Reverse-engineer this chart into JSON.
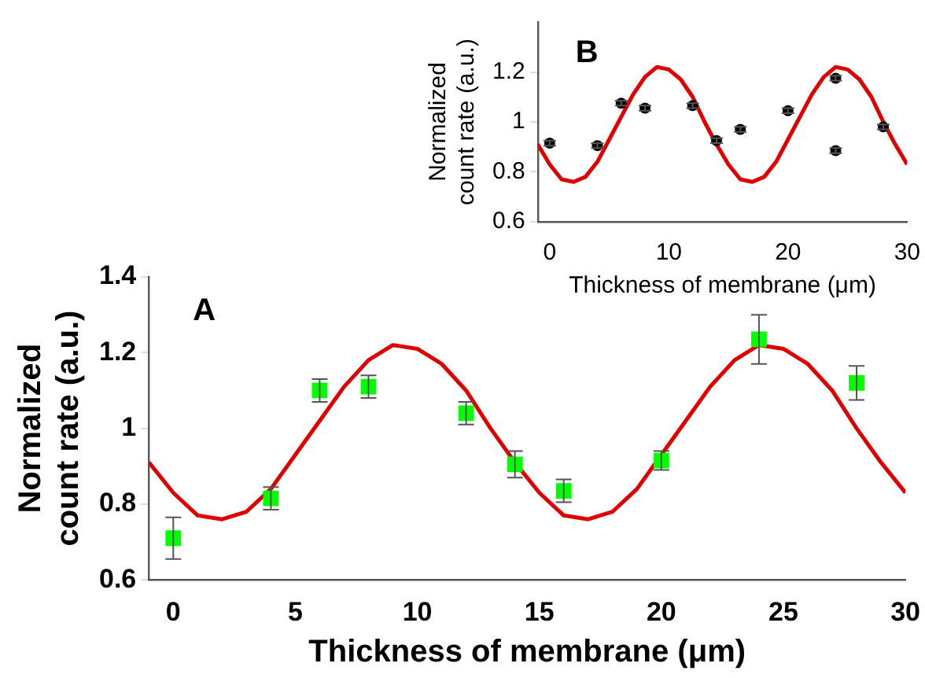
{
  "chart_data": [
    {
      "type": "scatter",
      "annotations": [
        "A"
      ],
      "xlabel": "Thickness of membrane (μm)",
      "ylabel": "Normalized count rate (a.u.)",
      "xlim": [
        -1,
        30
      ],
      "xticks": [
        0,
        5,
        10,
        15,
        20,
        25,
        30
      ],
      "ylim": [
        0.6,
        1.4
      ],
      "yticks": [
        0.6,
        0.8,
        1,
        1.2,
        1.4
      ],
      "grid": false,
      "legend": false,
      "series": [
        {
          "marker": "square",
          "color": "#00ff00",
          "x": [
            0,
            4,
            6,
            8,
            12,
            14,
            16,
            20,
            24,
            28
          ],
          "values": [
            0.71,
            0.815,
            1.1,
            1.11,
            1.04,
            0.905,
            0.835,
            0.915,
            1.235,
            1.12
          ],
          "errors": [
            0.055,
            0.03,
            0.03,
            0.03,
            0.03,
            0.035,
            0.03,
            0.025,
            0.065,
            0.045
          ]
        },
        {
          "type": "line",
          "marker": "none",
          "color": "#e00000",
          "x": [
            -1,
            0,
            1,
            2,
            3,
            4,
            5,
            6,
            7,
            8,
            9,
            10,
            11,
            12,
            13,
            14,
            15,
            16,
            17,
            18,
            19,
            20,
            21,
            22,
            23,
            24,
            25,
            26,
            27,
            28,
            29,
            30
          ],
          "values": [
            0.91,
            0.83,
            0.77,
            0.76,
            0.78,
            0.84,
            0.93,
            1.02,
            1.11,
            1.18,
            1.22,
            1.21,
            1.17,
            1.1,
            1.0,
            0.91,
            0.83,
            0.77,
            0.76,
            0.78,
            0.84,
            0.93,
            1.02,
            1.11,
            1.18,
            1.22,
            1.21,
            1.17,
            1.1,
            1.0,
            0.91,
            0.83
          ]
        }
      ]
    },
    {
      "type": "scatter",
      "annotations": [
        "B"
      ],
      "xlabel": "Thickness of membrane (μm)",
      "ylabel": "Normalized count rate (a.u.)",
      "xlim": [
        -1,
        30
      ],
      "xticks": [
        0,
        10,
        20,
        30
      ],
      "ylim": [
        0.6,
        1.4
      ],
      "yticks": [
        0.6,
        0.8,
        1,
        1.2
      ],
      "grid": false,
      "legend": false,
      "series": [
        {
          "marker": "circle",
          "color": "#000000",
          "x": [
            0,
            4,
            6,
            8,
            12,
            14,
            16,
            20,
            24,
            24,
            28
          ],
          "values": [
            0.915,
            0.905,
            1.075,
            1.055,
            1.065,
            0.925,
            0.97,
            1.045,
            1.175,
            0.885,
            0.98
          ],
          "errors": [
            0.01,
            0.01,
            0.01,
            0.01,
            0.01,
            0.01,
            0.01,
            0.01,
            0.01,
            0.01,
            0.01
          ]
        },
        {
          "type": "line",
          "marker": "none",
          "color": "#e00000",
          "x": [
            -1,
            0,
            1,
            2,
            3,
            4,
            5,
            6,
            7,
            8,
            9,
            10,
            11,
            12,
            13,
            14,
            15,
            16,
            17,
            18,
            19,
            20,
            21,
            22,
            23,
            24,
            25,
            26,
            27,
            28,
            29,
            30
          ],
          "values": [
            0.91,
            0.83,
            0.77,
            0.76,
            0.78,
            0.84,
            0.93,
            1.02,
            1.11,
            1.18,
            1.22,
            1.21,
            1.17,
            1.1,
            1.0,
            0.91,
            0.83,
            0.77,
            0.76,
            0.78,
            0.84,
            0.93,
            1.02,
            1.11,
            1.18,
            1.22,
            1.21,
            1.17,
            1.1,
            1.0,
            0.91,
            0.83
          ]
        }
      ]
    }
  ]
}
